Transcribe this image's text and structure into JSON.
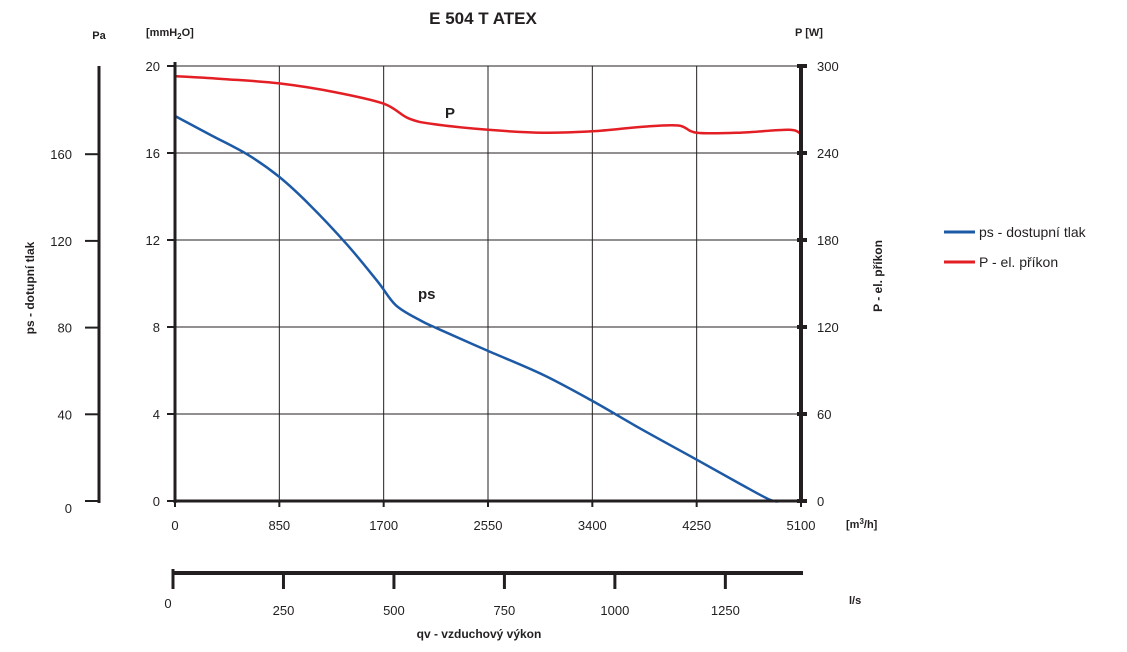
{
  "chart_data": {
    "type": "line",
    "title": "E 504 T ATEX",
    "xlabel": "qv - vzduchový výkon",
    "x_unit_primary": "[m³/h]",
    "x_unit_secondary": "l/s",
    "y_left_outer_unit": "Pa",
    "y_left_outer_label": "ps - dotupní tlak",
    "y_left_inner_unit": "[mmH₂O]",
    "y_right_unit": "P [W]",
    "y_right_label": "P - el. příkon",
    "xlim": [
      0,
      5100
    ],
    "x_ticks": [
      "0",
      "850",
      "1700",
      "2550",
      "3400",
      "4250",
      "5100"
    ],
    "x_secondary_ticks": [
      "0",
      "250",
      "500",
      "750",
      "1000",
      "1250"
    ],
    "y_left_inner_ticks": [
      "0",
      "4",
      "8",
      "12",
      "16",
      "20"
    ],
    "y_left_outer_ticks": [
      "0",
      "40",
      "80",
      "120",
      "160"
    ],
    "y_right_ticks": [
      "0",
      "60",
      "120",
      "180",
      "240",
      "300"
    ],
    "ylim_mmH2O": [
      0,
      20
    ],
    "ylim_W": [
      0,
      300
    ],
    "grid": true,
    "legend_position": "right",
    "series": [
      {
        "name": "ps - dostupní tlak",
        "label": "ps",
        "axis": "mmH2O",
        "color": "#1d5aa6",
        "x": [
          0,
          300,
          600,
          850,
          1100,
          1400,
          1650,
          1800,
          2000,
          2150,
          2550,
          3000,
          3400,
          3800,
          4250,
          4600,
          4850,
          4950,
          5100
        ],
        "y": [
          17.7,
          16.8,
          15.9,
          14.9,
          13.6,
          11.8,
          10.1,
          9.0,
          8.3,
          7.9,
          6.9,
          5.8,
          4.6,
          3.3,
          1.9,
          0.8,
          0.05,
          0.0,
          0.0
        ]
      },
      {
        "name": "P - el. příkon",
        "label": "P",
        "axis": "W",
        "color": "#e31e24",
        "x": [
          0,
          400,
          850,
          1300,
          1700,
          1900,
          2100,
          2550,
          3000,
          3400,
          3800,
          4100,
          4250,
          4600,
          5000,
          5100
        ],
        "y": [
          293,
          291,
          288,
          282,
          274,
          264,
          260,
          256,
          254,
          255,
          258,
          259,
          254,
          254,
          256,
          253
        ]
      }
    ]
  }
}
